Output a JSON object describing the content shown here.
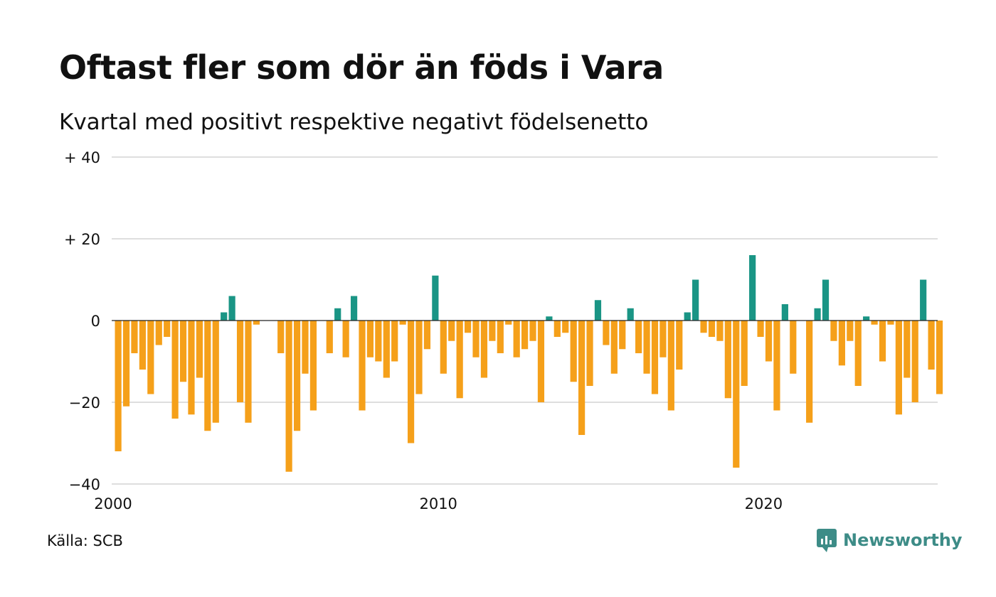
{
  "title": "Oftast fler som dör än föds i Vara",
  "subtitle": "Kvartal med positivt respektive negativt födelsenetto",
  "source": "Källa: SCB",
  "brand": {
    "name": "Newsworthy",
    "icon": "newsworthy-logo-icon",
    "color": "#3d8c87"
  },
  "chart_data": {
    "type": "bar",
    "x_start": "2000 Q1",
    "x_tick_labels": [
      "2000",
      "2010",
      "2020"
    ],
    "y_ticks": [
      40,
      20,
      0,
      -20,
      -40
    ],
    "y_tick_labels": [
      "+ 40",
      "+ 20",
      "0",
      "−20",
      "−40"
    ],
    "ylim": [
      -40,
      40
    ],
    "grid": true,
    "colors": {
      "positive": "#1a9585",
      "negative": "#f5a01a"
    },
    "values": [
      -32,
      -21,
      -8,
      -12,
      -18,
      -6,
      -4,
      -24,
      -15,
      -23,
      -14,
      -27,
      -25,
      2,
      6,
      -20,
      -25,
      -1,
      0,
      0,
      -8,
      -37,
      -27,
      -13,
      -22,
      0,
      -8,
      3,
      -9,
      6,
      -22,
      -9,
      -10,
      -14,
      -10,
      -1,
      -30,
      -18,
      -7,
      11,
      -13,
      -5,
      -19,
      -3,
      -9,
      -14,
      -5,
      -8,
      -1,
      -9,
      -7,
      -5,
      -20,
      1,
      -4,
      -3,
      -15,
      -28,
      -16,
      5,
      -6,
      -13,
      -7,
      3,
      -8,
      -13,
      -18,
      -9,
      -22,
      -12,
      2,
      10,
      -3,
      -4,
      -5,
      -19,
      -36,
      -16,
      16,
      -4,
      -10,
      -22,
      4,
      -13,
      0,
      -25,
      3,
      10,
      -5,
      -11,
      -5,
      -16,
      1,
      -1,
      -10,
      -1,
      -23,
      -14,
      -20,
      10,
      -12,
      -18
    ]
  }
}
